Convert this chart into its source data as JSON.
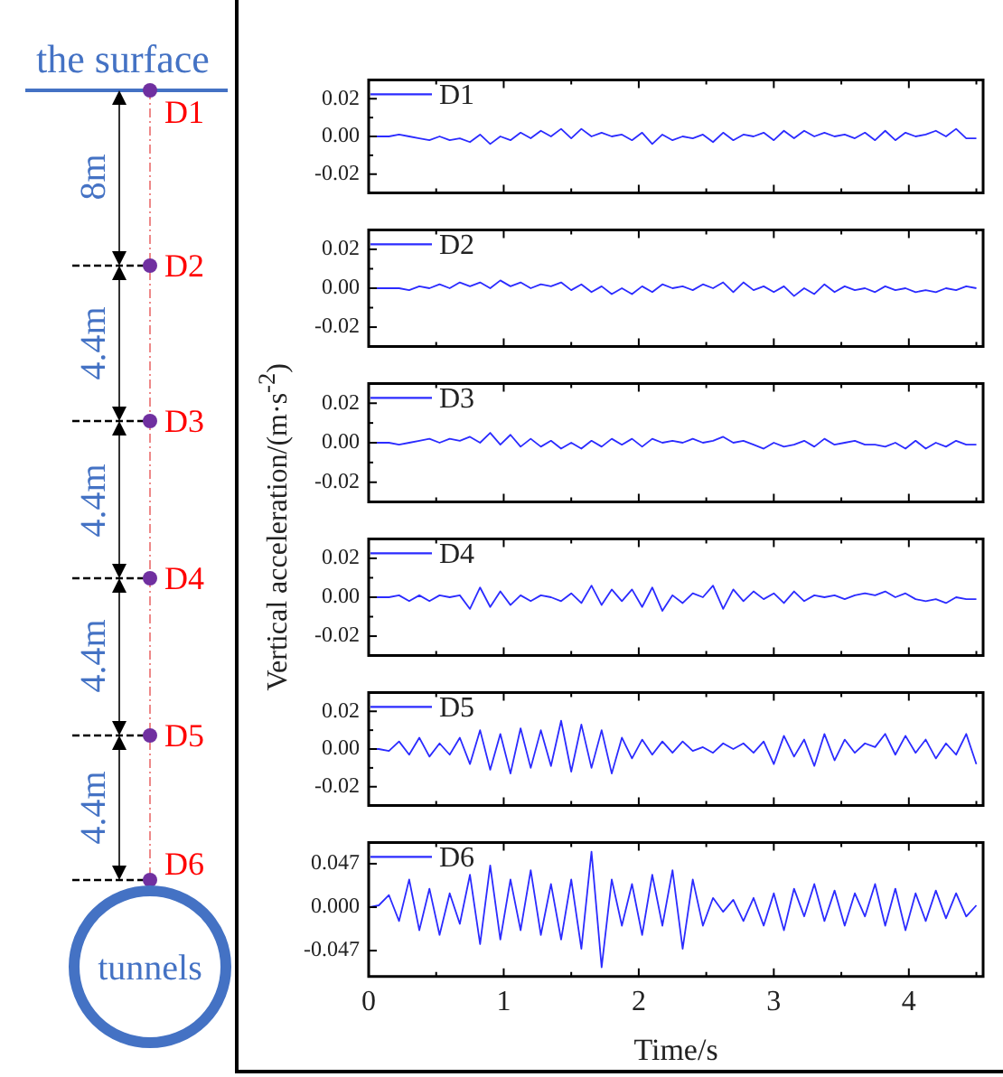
{
  "chart_data": [
    {
      "type": "other",
      "annotations": [
        "the surface",
        "D1",
        "8m",
        "D2",
        "4.4m",
        "D3",
        "4.4m",
        "D4",
        "4.4m",
        "D5",
        "4.4m",
        "D6",
        "tunnels"
      ]
    },
    {
      "type": "line",
      "legend": "top left",
      "marker": "none",
      "line_style": "solid",
      "tick_labels": "y",
      "xlim": [
        0,
        4.55
      ],
      "xticks": [
        0,
        {
          "value": 0.5,
          "label": null
        },
        1,
        {
          "value": 1.5,
          "label": null
        },
        2,
        {
          "value": 2.5,
          "label": null
        },
        3,
        {
          "value": 3.5,
          "label": null
        },
        4,
        {
          "value": 4.5,
          "label": null
        }
      ],
      "ylim": [
        -0.03,
        0.03
      ],
      "yticks": [
        -0.02,
        {
          "value": -0.01,
          "label": null
        },
        {
          "value": 0,
          "label": "0.00"
        },
        {
          "value": 0.01,
          "label": null
        },
        0.02
      ],
      "x": [
        0,
        0.075,
        0.15,
        0.225,
        0.3,
        0.375,
        0.45,
        0.525,
        0.6,
        0.675,
        0.75,
        0.825,
        0.9,
        0.975,
        1.05,
        1.125,
        1.2,
        1.275,
        1.35,
        1.425,
        1.5,
        1.575,
        1.65,
        1.725,
        1.8,
        1.875,
        1.95,
        2.025,
        2.1,
        2.175,
        2.25,
        2.325,
        2.4,
        2.475,
        2.55,
        2.625,
        2.7,
        2.775,
        2.85,
        2.925,
        3,
        3.075,
        3.15,
        3.225,
        3.3,
        3.375,
        3.45,
        3.525,
        3.6,
        3.675,
        3.75,
        3.825,
        3.9,
        3.975,
        4.05,
        4.125,
        4.2,
        4.275,
        4.35,
        4.425,
        4.5
      ],
      "series": [
        {
          "name": "D1",
          "color": "#2b2bff",
          "values": [
            0,
            0,
            0,
            0.001,
            0,
            -0.001,
            -0.002,
            0,
            -0.002,
            -0.001,
            -0.003,
            0.001,
            -0.004,
            0,
            -0.002,
            0.002,
            -0.001,
            0.003,
            0,
            0.004,
            -0.001,
            0.004,
            0,
            0.002,
            0,
            0.001,
            -0.002,
            0.002,
            -0.004,
            0.001,
            -0.002,
            0,
            -0.001,
            0.001,
            -0.003,
            0.002,
            -0.002,
            0.001,
            0,
            0.002,
            -0.002,
            0.003,
            -0.001,
            0.003,
            0,
            0.002,
            0,
            0.001,
            -0.001,
            0.002,
            -0.002,
            0.003,
            -0.002,
            0.002,
            0,
            0.001,
            0.003,
            0,
            0.004,
            -0.001,
            -0.001
          ]
        }
      ]
    },
    {
      "type": "line",
      "legend": "top left",
      "marker": "none",
      "line_style": "solid",
      "tick_labels": "y",
      "xlim": [
        0,
        4.55
      ],
      "xticks": [
        0,
        {
          "value": 0.5,
          "label": null
        },
        1,
        {
          "value": 1.5,
          "label": null
        },
        2,
        {
          "value": 2.5,
          "label": null
        },
        3,
        {
          "value": 3.5,
          "label": null
        },
        4,
        {
          "value": 4.5,
          "label": null
        }
      ],
      "ylim": [
        -0.03,
        0.03
      ],
      "yticks": [
        -0.02,
        {
          "value": -0.01,
          "label": null
        },
        {
          "value": 0,
          "label": "0.00"
        },
        {
          "value": 0.01,
          "label": null
        },
        0.02
      ],
      "x": [
        0,
        0.075,
        0.15,
        0.225,
        0.3,
        0.375,
        0.45,
        0.525,
        0.6,
        0.675,
        0.75,
        0.825,
        0.9,
        0.975,
        1.05,
        1.125,
        1.2,
        1.275,
        1.35,
        1.425,
        1.5,
        1.575,
        1.65,
        1.725,
        1.8,
        1.875,
        1.95,
        2.025,
        2.1,
        2.175,
        2.25,
        2.325,
        2.4,
        2.475,
        2.55,
        2.625,
        2.7,
        2.775,
        2.85,
        2.925,
        3,
        3.075,
        3.15,
        3.225,
        3.3,
        3.375,
        3.45,
        3.525,
        3.6,
        3.675,
        3.75,
        3.825,
        3.9,
        3.975,
        4.05,
        4.125,
        4.2,
        4.275,
        4.35,
        4.425,
        4.5
      ],
      "series": [
        {
          "name": "D2",
          "color": "#2b2bff",
          "values": [
            0,
            0,
            0,
            0,
            -0.001,
            0.001,
            0,
            0.002,
            0,
            0.003,
            0.001,
            0.003,
            0,
            0.004,
            0.001,
            0.003,
            0,
            0.002,
            0.001,
            0.003,
            -0.001,
            0.002,
            -0.002,
            0.001,
            -0.003,
            0,
            -0.003,
            0.001,
            -0.002,
            0.002,
            0,
            0.001,
            -0.001,
            0.002,
            0,
            0.003,
            -0.002,
            0.003,
            -0.001,
            0.001,
            -0.002,
            0.001,
            -0.004,
            0,
            -0.003,
            0.002,
            -0.002,
            0.001,
            -0.001,
            0,
            -0.002,
            0.001,
            -0.001,
            0,
            -0.002,
            -0.001,
            -0.002,
            0,
            -0.001,
            0.001,
            0
          ]
        }
      ]
    },
    {
      "type": "line",
      "legend": "top left",
      "marker": "none",
      "line_style": "solid",
      "tick_labels": "y",
      "ylabel": "Vertical acceleration/(m·s$^{-2}$)",
      "xlim": [
        0,
        4.55
      ],
      "xticks": [
        0,
        {
          "value": 0.5,
          "label": null
        },
        1,
        {
          "value": 1.5,
          "label": null
        },
        2,
        {
          "value": 2.5,
          "label": null
        },
        3,
        {
          "value": 3.5,
          "label": null
        },
        4,
        {
          "value": 4.5,
          "label": null
        }
      ],
      "ylim": [
        -0.03,
        0.03
      ],
      "yticks": [
        -0.02,
        {
          "value": -0.01,
          "label": null
        },
        {
          "value": 0,
          "label": "0.00"
        },
        {
          "value": 0.01,
          "label": null
        },
        0.02
      ],
      "x": [
        0,
        0.075,
        0.15,
        0.225,
        0.3,
        0.375,
        0.45,
        0.525,
        0.6,
        0.675,
        0.75,
        0.825,
        0.9,
        0.975,
        1.05,
        1.125,
        1.2,
        1.275,
        1.35,
        1.425,
        1.5,
        1.575,
        1.65,
        1.725,
        1.8,
        1.875,
        1.95,
        2.025,
        2.1,
        2.175,
        2.25,
        2.325,
        2.4,
        2.475,
        2.55,
        2.625,
        2.7,
        2.775,
        2.85,
        2.925,
        3,
        3.075,
        3.15,
        3.225,
        3.3,
        3.375,
        3.45,
        3.525,
        3.6,
        3.675,
        3.75,
        3.825,
        3.9,
        3.975,
        4.05,
        4.125,
        4.2,
        4.275,
        4.35,
        4.425,
        4.5
      ],
      "series": [
        {
          "name": "D3",
          "color": "#2b2bff",
          "values": [
            0,
            0,
            0,
            -0.001,
            0,
            0.001,
            0.002,
            0,
            0.002,
            0.001,
            0.003,
            0,
            0.005,
            -0.001,
            0.004,
            -0.002,
            0.002,
            -0.002,
            0.001,
            -0.003,
            0,
            -0.003,
            0.001,
            -0.002,
            0.002,
            -0.001,
            0.002,
            -0.002,
            0.002,
            0,
            0.001,
            0,
            0.002,
            0,
            0.001,
            0.003,
            0,
            0.001,
            -0.001,
            -0.003,
            0,
            -0.002,
            -0.001,
            0.001,
            -0.002,
            0.002,
            -0.001,
            0,
            0.001,
            -0.001,
            -0.001,
            -0.002,
            0,
            -0.003,
            0.001,
            -0.003,
            0,
            -0.002,
            0.001,
            -0.001,
            -0.001
          ]
        }
      ]
    },
    {
      "type": "line",
      "legend": "top left",
      "marker": "none",
      "line_style": "solid",
      "tick_labels": "y",
      "xlim": [
        0,
        4.55
      ],
      "xticks": [
        0,
        {
          "value": 0.5,
          "label": null
        },
        1,
        {
          "value": 1.5,
          "label": null
        },
        2,
        {
          "value": 2.5,
          "label": null
        },
        3,
        {
          "value": 3.5,
          "label": null
        },
        4,
        {
          "value": 4.5,
          "label": null
        }
      ],
      "ylim": [
        -0.03,
        0.03
      ],
      "yticks": [
        -0.02,
        {
          "value": -0.01,
          "label": null
        },
        {
          "value": 0,
          "label": "0.00"
        },
        {
          "value": 0.01,
          "label": null
        },
        0.02
      ],
      "x": [
        0,
        0.075,
        0.15,
        0.225,
        0.3,
        0.375,
        0.45,
        0.525,
        0.6,
        0.675,
        0.75,
        0.825,
        0.9,
        0.975,
        1.05,
        1.125,
        1.2,
        1.275,
        1.35,
        1.425,
        1.5,
        1.575,
        1.65,
        1.725,
        1.8,
        1.875,
        1.95,
        2.025,
        2.1,
        2.175,
        2.25,
        2.325,
        2.4,
        2.475,
        2.55,
        2.625,
        2.7,
        2.775,
        2.85,
        2.925,
        3,
        3.075,
        3.15,
        3.225,
        3.3,
        3.375,
        3.45,
        3.525,
        3.6,
        3.675,
        3.75,
        3.825,
        3.9,
        3.975,
        4.05,
        4.125,
        4.2,
        4.275,
        4.35,
        4.425,
        4.5
      ],
      "series": [
        {
          "name": "D4",
          "color": "#2b2bff",
          "values": [
            0,
            0,
            0,
            0.001,
            -0.002,
            0.001,
            -0.002,
            0.001,
            0,
            0.001,
            -0.006,
            0.005,
            -0.005,
            0.003,
            -0.004,
            0.001,
            -0.002,
            0.001,
            0,
            -0.002,
            0.002,
            -0.003,
            0.006,
            -0.004,
            0.004,
            -0.002,
            0.004,
            -0.005,
            0.005,
            -0.007,
            0.001,
            -0.003,
            0.002,
            0,
            0.006,
            -0.006,
            0.004,
            -0.002,
            0.003,
            -0.001,
            0.002,
            -0.003,
            0.003,
            -0.002,
            0.001,
            0,
            0.001,
            -0.001,
            0.001,
            0.002,
            0.001,
            0.003,
            0,
            0.002,
            -0.001,
            -0.002,
            -0.001,
            -0.003,
            0,
            -0.001,
            -0.001
          ]
        }
      ]
    },
    {
      "type": "line",
      "legend": "top left",
      "marker": "none",
      "line_style": "solid",
      "tick_labels": "y",
      "xlim": [
        0,
        4.55
      ],
      "xticks": [
        0,
        {
          "value": 0.5,
          "label": null
        },
        1,
        {
          "value": 1.5,
          "label": null
        },
        2,
        {
          "value": 2.5,
          "label": null
        },
        3,
        {
          "value": 3.5,
          "label": null
        },
        4,
        {
          "value": 4.5,
          "label": null
        }
      ],
      "ylim": [
        -0.03,
        0.03
      ],
      "yticks": [
        -0.02,
        {
          "value": -0.01,
          "label": null
        },
        {
          "value": 0,
          "label": "0.00"
        },
        {
          "value": 0.01,
          "label": null
        },
        0.02
      ],
      "x": [
        0,
        0.075,
        0.15,
        0.225,
        0.3,
        0.375,
        0.45,
        0.525,
        0.6,
        0.675,
        0.75,
        0.825,
        0.9,
        0.975,
        1.05,
        1.125,
        1.2,
        1.275,
        1.35,
        1.425,
        1.5,
        1.575,
        1.65,
        1.725,
        1.8,
        1.875,
        1.95,
        2.025,
        2.1,
        2.175,
        2.25,
        2.325,
        2.4,
        2.475,
        2.55,
        2.625,
        2.7,
        2.775,
        2.85,
        2.925,
        3,
        3.075,
        3.15,
        3.225,
        3.3,
        3.375,
        3.45,
        3.525,
        3.6,
        3.675,
        3.75,
        3.825,
        3.9,
        3.975,
        4.05,
        4.125,
        4.2,
        4.275,
        4.35,
        4.425,
        4.5
      ],
      "series": [
        {
          "name": "D5",
          "color": "#2b2bff",
          "values": [
            0,
            0,
            -0.001,
            0.004,
            -0.003,
            0.006,
            -0.004,
            0.003,
            -0.003,
            0.006,
            -0.008,
            0.01,
            -0.011,
            0.008,
            -0.013,
            0.011,
            -0.01,
            0.01,
            -0.009,
            0.015,
            -0.012,
            0.013,
            -0.01,
            0.01,
            -0.013,
            0.006,
            -0.005,
            0.005,
            -0.003,
            0.004,
            -0.002,
            0.004,
            -0.001,
            0.001,
            -0.002,
            0.003,
            0,
            0.003,
            -0.002,
            0.004,
            -0.008,
            0.007,
            -0.004,
            0.005,
            -0.009,
            0.008,
            -0.006,
            0.005,
            -0.002,
            0.003,
            0.001,
            0.008,
            -0.003,
            0.007,
            -0.002,
            0.005,
            -0.005,
            0.003,
            -0.003,
            0.008,
            -0.008
          ]
        }
      ]
    },
    {
      "type": "line",
      "legend": "top left",
      "marker": "none",
      "line_style": "solid",
      "xlabel": "Time/s",
      "xlim": [
        0,
        4.55
      ],
      "xticks": [
        0,
        {
          "value": 0.5,
          "label": null
        },
        1,
        {
          "value": 1.5,
          "label": null
        },
        2,
        {
          "value": 2.5,
          "label": null
        },
        3,
        {
          "value": 3.5,
          "label": null
        },
        4,
        {
          "value": 4.5,
          "label": null
        }
      ],
      "ylim": [
        -0.075,
        0.07
      ],
      "yticks": [
        -0.047,
        {
          "value": 0,
          "label": "0.000"
        },
        0.047
      ],
      "x": [
        0,
        0.075,
        0.15,
        0.225,
        0.3,
        0.375,
        0.45,
        0.525,
        0.6,
        0.675,
        0.75,
        0.825,
        0.9,
        0.975,
        1.05,
        1.125,
        1.2,
        1.275,
        1.35,
        1.425,
        1.5,
        1.575,
        1.65,
        1.725,
        1.8,
        1.875,
        1.95,
        2.025,
        2.1,
        2.175,
        2.25,
        2.325,
        2.4,
        2.475,
        2.55,
        2.625,
        2.7,
        2.775,
        2.85,
        2.925,
        3,
        3.075,
        3.15,
        3.225,
        3.3,
        3.375,
        3.45,
        3.525,
        3.6,
        3.675,
        3.75,
        3.825,
        3.9,
        3.975,
        4.05,
        4.125,
        4.2,
        4.275,
        4.35,
        4.425,
        4.5
      ],
      "series": [
        {
          "name": "D6",
          "color": "#2b2bff",
          "values": [
            0,
            0.002,
            0.013,
            -0.015,
            0.03,
            -0.025,
            0.02,
            -0.03,
            0.015,
            -0.018,
            0.035,
            -0.04,
            0.045,
            -0.035,
            0.03,
            -0.025,
            0.04,
            -0.03,
            0.025,
            -0.035,
            0.03,
            -0.045,
            0.06,
            -0.065,
            0.03,
            -0.02,
            0.025,
            -0.03,
            0.035,
            -0.02,
            0.04,
            -0.045,
            0.03,
            -0.02,
            0.01,
            -0.005,
            0.008,
            -0.015,
            0.01,
            -0.02,
            0.015,
            -0.025,
            0.02,
            -0.01,
            0.025,
            -0.015,
            0.018,
            -0.02,
            0.015,
            -0.01,
            0.025,
            -0.02,
            0.02,
            -0.025,
            0.015,
            -0.015,
            0.018,
            -0.012,
            0.015,
            -0.01,
            0.002
          ]
        }
      ]
    }
  ]
}
